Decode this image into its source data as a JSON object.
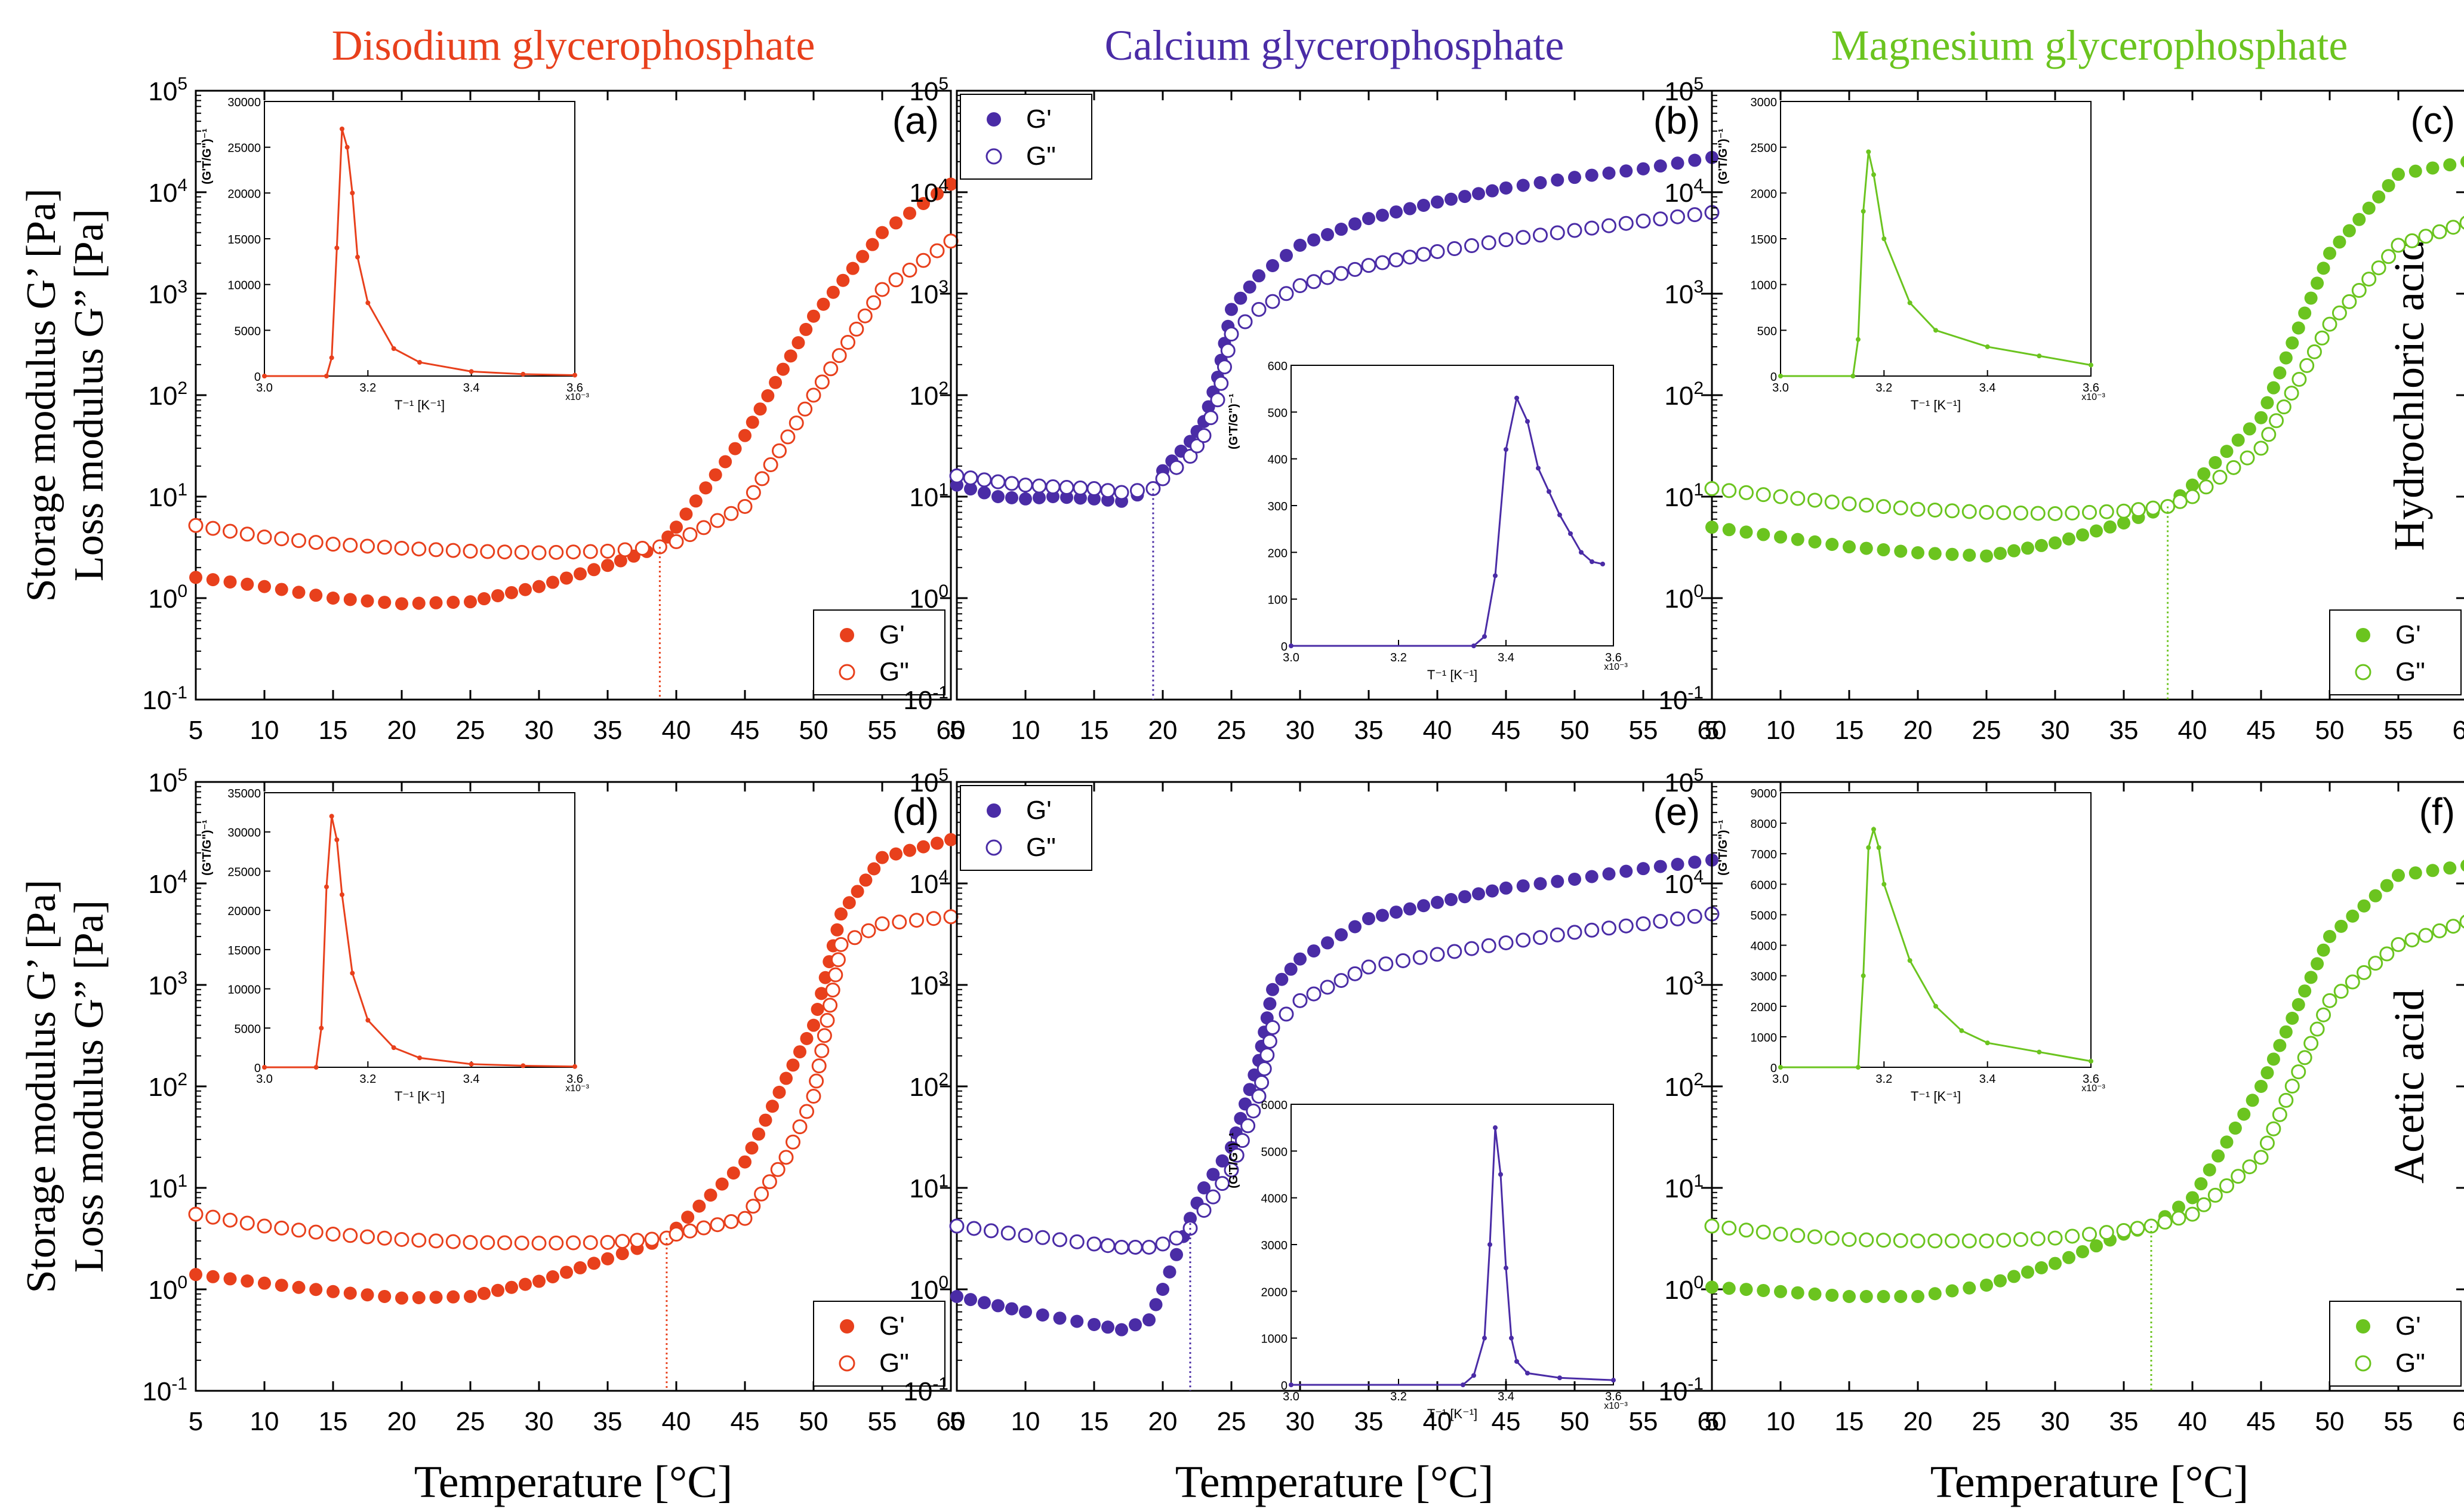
{
  "colors": {
    "disodium": "#e8401c",
    "calcium": "#4a2ca6",
    "magnesium": "#6bc41f",
    "axis": "#000000"
  },
  "column_titles": [
    "Disodium glycerophosphate",
    "Calcium glycerophosphate",
    "Magnesium glycerophosphate"
  ],
  "row_labels": [
    "Hydrochloric acid",
    "Acetic acid"
  ],
  "y_axis_label_line1": "Storage modulus G’ [Pa]",
  "y_axis_label_line2": "Loss modulus G” [Pa]",
  "x_axis_label": "Temperature [°C]",
  "legend": {
    "storage": "G'",
    "loss": "G\""
  },
  "x_ticks": [
    "5",
    "10",
    "15",
    "20",
    "25",
    "30",
    "35",
    "40",
    "45",
    "50",
    "55",
    "60"
  ],
  "y_ticks": [
    {
      "base": "10",
      "exp": "-1"
    },
    {
      "base": "10",
      "exp": "0"
    },
    {
      "base": "10",
      "exp": "1"
    },
    {
      "base": "10",
      "exp": "2"
    },
    {
      "base": "10",
      "exp": "3"
    },
    {
      "base": "10",
      "exp": "4"
    },
    {
      "base": "10",
      "exp": "5"
    }
  ],
  "inset_x_label": "T⁻¹ [K⁻¹]",
  "inset_y_label": "(G'T/G\")⁻¹",
  "inset_x_ticks": [
    "3.0",
    "3.2",
    "3.4",
    "3.6"
  ],
  "inset_x_scale": "x10⁻³",
  "chart_data": [
    {
      "type": "scatter",
      "panel": "(a)",
      "compound": "Disodium glycerophosphate",
      "acid": "Hydrochloric acid",
      "color_key": "disodium",
      "xlim": [
        5,
        60
      ],
      "ylim_log10": [
        -1,
        5
      ],
      "gel_point_c": 38.8,
      "series": [
        {
          "name": "G'",
          "marker": "filled",
          "x": [
            5,
            10,
            15,
            20,
            25,
            30,
            35,
            38.8,
            40,
            45,
            50,
            55,
            60
          ],
          "y": [
            1.6,
            1.3,
            1.0,
            0.88,
            0.92,
            1.3,
            2.1,
            3.2,
            5.0,
            40,
            600,
            4000,
            12000
          ]
        },
        {
          "name": "G\"",
          "marker": "open",
          "x": [
            5,
            10,
            15,
            20,
            25,
            30,
            35,
            38.8,
            40,
            45,
            50,
            55,
            60
          ],
          "y": [
            5.2,
            4.0,
            3.4,
            3.1,
            2.9,
            2.8,
            2.9,
            3.2,
            3.6,
            8,
            100,
            1100,
            3300
          ]
        }
      ],
      "inset": {
        "position": "top-left",
        "xlim": [
          3.0,
          3.6
        ],
        "ylim": [
          0,
          30000
        ],
        "y_ticks": [
          "0",
          "5000",
          "10000",
          "15000",
          "20000",
          "25000",
          "30000"
        ],
        "x": [
          3.0,
          3.12,
          3.13,
          3.14,
          3.15,
          3.16,
          3.17,
          3.18,
          3.2,
          3.25,
          3.3,
          3.4,
          3.5,
          3.6
        ],
        "y": [
          0,
          0,
          2000,
          14000,
          27000,
          25000,
          20000,
          13000,
          8000,
          3000,
          1500,
          500,
          200,
          100
        ]
      }
    },
    {
      "type": "scatter",
      "panel": "(b)",
      "compound": "Calcium glycerophosphate",
      "acid": "Hydrochloric acid",
      "color_key": "calcium",
      "xlim": [
        5,
        60
      ],
      "ylim_log10": [
        -1,
        5
      ],
      "gel_point_c": 19.3,
      "series": [
        {
          "name": "G'",
          "marker": "filled",
          "x": [
            5,
            8,
            10,
            12,
            15,
            17,
            19.3,
            20,
            22,
            23,
            24,
            25,
            27,
            30,
            35,
            40,
            45,
            50,
            55,
            60
          ],
          "y": [
            13,
            10,
            9.5,
            10,
            9.5,
            9,
            12,
            18,
            35,
            55,
            150,
            700,
            1500,
            3000,
            5500,
            8000,
            11000,
            14000,
            17000,
            22000
          ]
        },
        {
          "name": "G\"",
          "marker": "open",
          "x": [
            5,
            8,
            10,
            12,
            15,
            17,
            19.3,
            20,
            22,
            23,
            24,
            25,
            27,
            30,
            35,
            40,
            45,
            50,
            55,
            60
          ],
          "y": [
            16,
            14,
            13,
            12.5,
            12,
            11,
            12,
            15,
            25,
            40,
            90,
            400,
            700,
            1200,
            1900,
            2600,
            3400,
            4200,
            5200,
            6300
          ]
        }
      ],
      "inset": {
        "position": "center-right",
        "xlim": [
          3.0,
          3.6
        ],
        "ylim": [
          0,
          600
        ],
        "y_ticks": [
          "0",
          "100",
          "200",
          "300",
          "400",
          "500",
          "600"
        ],
        "x": [
          3.0,
          3.34,
          3.36,
          3.38,
          3.4,
          3.42,
          3.44,
          3.46,
          3.48,
          3.5,
          3.52,
          3.54,
          3.56,
          3.58
        ],
        "y": [
          0,
          0,
          20,
          150,
          420,
          530,
          480,
          380,
          330,
          280,
          240,
          200,
          180,
          175
        ]
      }
    },
    {
      "type": "scatter",
      "panel": "(c)",
      "compound": "Magnesium glycerophosphate",
      "acid": "Hydrochloric acid",
      "color_key": "magnesium",
      "xlim": [
        5,
        60
      ],
      "ylim_log10": [
        -1,
        5
      ],
      "gel_point_c": 38.2,
      "series": [
        {
          "name": "G'",
          "marker": "filled",
          "x": [
            5,
            10,
            15,
            20,
            25,
            30,
            35,
            38.2,
            40,
            45,
            50,
            55,
            60
          ],
          "y": [
            5,
            4,
            3.2,
            2.8,
            2.6,
            3.5,
            5.5,
            8,
            13,
            60,
            2500,
            15000,
            20000
          ]
        },
        {
          "name": "G\"",
          "marker": "open",
          "x": [
            5,
            10,
            15,
            20,
            25,
            30,
            35,
            38.2,
            40,
            45,
            50,
            55,
            60
          ],
          "y": [
            12,
            10,
            8.5,
            7.5,
            7,
            6.8,
            7.2,
            8,
            10,
            30,
            500,
            3000,
            5000
          ]
        }
      ],
      "inset": {
        "position": "top-left",
        "xlim": [
          3.0,
          3.6
        ],
        "ylim": [
          0,
          3000
        ],
        "y_ticks": [
          "0",
          "500",
          "1000",
          "1500",
          "2000",
          "2500",
          "3000"
        ],
        "x": [
          3.0,
          3.14,
          3.15,
          3.16,
          3.17,
          3.18,
          3.2,
          3.25,
          3.3,
          3.4,
          3.5,
          3.6
        ],
        "y": [
          0,
          0,
          400,
          1800,
          2450,
          2200,
          1500,
          800,
          500,
          320,
          220,
          120
        ]
      }
    },
    {
      "type": "scatter",
      "panel": "(d)",
      "compound": "Disodium glycerophosphate",
      "acid": "Acetic acid",
      "color_key": "disodium",
      "xlim": [
        5,
        60
      ],
      "ylim_log10": [
        -1,
        5
      ],
      "gel_point_c": 39.3,
      "series": [
        {
          "name": "G'",
          "marker": "filled",
          "x": [
            5,
            10,
            15,
            20,
            25,
            30,
            35,
            39.3,
            40,
            45,
            48,
            50,
            52,
            55,
            60
          ],
          "y": [
            1.4,
            1.15,
            0.95,
            0.82,
            0.85,
            1.2,
            2.0,
            3.2,
            4.0,
            18,
            120,
            400,
            5000,
            18000,
            27000
          ]
        },
        {
          "name": "G\"",
          "marker": "open",
          "x": [
            5,
            10,
            15,
            20,
            25,
            30,
            35,
            39.3,
            40,
            45,
            48,
            50,
            52,
            55,
            60
          ],
          "y": [
            5.5,
            4.2,
            3.5,
            3.1,
            2.9,
            2.85,
            2.9,
            3.2,
            3.5,
            5,
            20,
            80,
            2500,
            4000,
            4700
          ]
        }
      ],
      "inset": {
        "position": "top-left",
        "xlim": [
          3.0,
          3.6
        ],
        "ylim": [
          0,
          35000
        ],
        "y_ticks": [
          "0",
          "5000",
          "10000",
          "15000",
          "20000",
          "25000",
          "30000",
          "35000"
        ],
        "x": [
          3.0,
          3.1,
          3.11,
          3.12,
          3.13,
          3.14,
          3.15,
          3.17,
          3.2,
          3.25,
          3.3,
          3.4,
          3.5,
          3.6
        ],
        "y": [
          0,
          0,
          5000,
          23000,
          32000,
          29000,
          22000,
          12000,
          6000,
          2500,
          1200,
          400,
          200,
          100
        ]
      }
    },
    {
      "type": "scatter",
      "panel": "(e)",
      "compound": "Calcium glycerophosphate",
      "acid": "Acetic acid",
      "color_key": "calcium",
      "xlim": [
        5,
        60
      ],
      "ylim_log10": [
        -1,
        5
      ],
      "gel_point_c": 22,
      "series": [
        {
          "name": "G'",
          "marker": "filled",
          "x": [
            5,
            10,
            15,
            17,
            19,
            20,
            21,
            22,
            23,
            25,
            27,
            28,
            30,
            35,
            40,
            45,
            50,
            55,
            60
          ],
          "y": [
            0.85,
            0.6,
            0.45,
            0.4,
            0.5,
            1.0,
            2.2,
            5,
            10,
            25,
            180,
            900,
            1800,
            4500,
            6500,
            9000,
            11000,
            14000,
            17000
          ]
        },
        {
          "name": "G\"",
          "marker": "open",
          "x": [
            5,
            10,
            15,
            17,
            19,
            20,
            21,
            22,
            23,
            25,
            27,
            28,
            30,
            35,
            40,
            45,
            50,
            55,
            60
          ],
          "y": [
            4.2,
            3.4,
            2.8,
            2.6,
            2.6,
            2.8,
            3.2,
            4,
            6,
            15,
            80,
            380,
            700,
            1500,
            2000,
            2600,
            3300,
            4000,
            5000
          ]
        }
      ],
      "inset": {
        "position": "bottom-right",
        "xlim": [
          3.0,
          3.6
        ],
        "ylim": [
          0,
          6000
        ],
        "y_ticks": [
          "0",
          "1000",
          "2000",
          "3000",
          "4000",
          "5000",
          "6000"
        ],
        "x": [
          3.0,
          3.32,
          3.34,
          3.36,
          3.37,
          3.38,
          3.39,
          3.4,
          3.41,
          3.42,
          3.44,
          3.5,
          3.6
        ],
        "y": [
          0,
          0,
          200,
          1000,
          3000,
          5500,
          4500,
          2500,
          1000,
          500,
          250,
          150,
          100
        ]
      }
    },
    {
      "type": "scatter",
      "panel": "(f)",
      "compound": "Magnesium glycerophosphate",
      "acid": "Acetic acid",
      "color_key": "magnesium",
      "xlim": [
        5,
        60
      ],
      "ylim_log10": [
        -1,
        5
      ],
      "gel_point_c": 37,
      "series": [
        {
          "name": "G'",
          "marker": "filled",
          "x": [
            5,
            10,
            15,
            20,
            25,
            30,
            35,
            37,
            40,
            45,
            50,
            55,
            60
          ],
          "y": [
            1.05,
            0.95,
            0.85,
            0.85,
            1.1,
            1.8,
            3.5,
            4.2,
            8,
            100,
            3000,
            12000,
            15000
          ]
        },
        {
          "name": "G\"",
          "marker": "open",
          "x": [
            5,
            10,
            15,
            20,
            25,
            30,
            35,
            37,
            40,
            45,
            50,
            55,
            60
          ],
          "y": [
            4.2,
            3.5,
            3.1,
            3.0,
            3.0,
            3.2,
            3.8,
            4.2,
            5.5,
            20,
            700,
            2500,
            4200
          ]
        }
      ],
      "inset": {
        "position": "top-left",
        "xlim": [
          3.0,
          3.6
        ],
        "ylim": [
          0,
          9000
        ],
        "y_ticks": [
          "0",
          "1000",
          "2000",
          "3000",
          "4000",
          "5000",
          "6000",
          "7000",
          "8000",
          "9000"
        ],
        "x": [
          3.0,
          3.15,
          3.16,
          3.17,
          3.18,
          3.19,
          3.2,
          3.25,
          3.3,
          3.35,
          3.4,
          3.5,
          3.6
        ],
        "y": [
          0,
          0,
          3000,
          7200,
          7800,
          7200,
          6000,
          3500,
          2000,
          1200,
          800,
          500,
          200
        ]
      }
    }
  ]
}
